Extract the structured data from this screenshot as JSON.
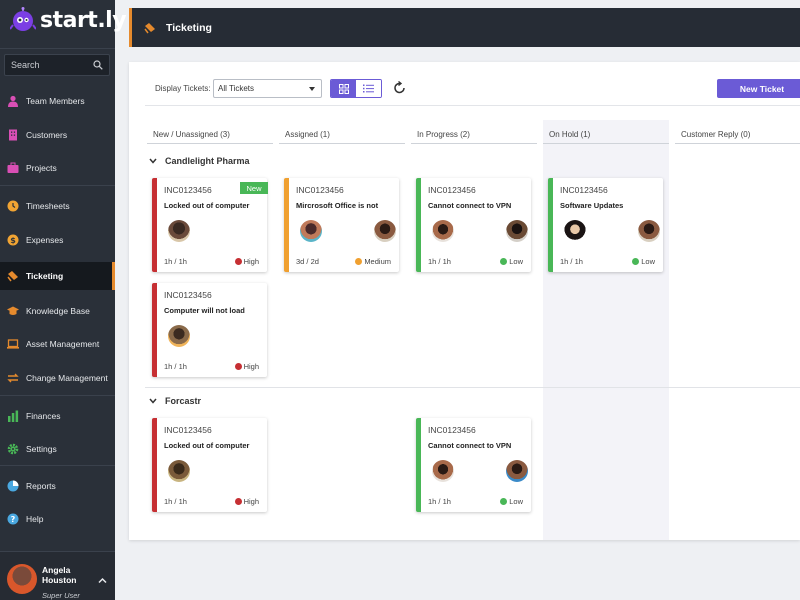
{
  "brand": {
    "name": "start.ly"
  },
  "search": {
    "placeholder": "Search"
  },
  "nav": [
    {
      "label": "Team Members",
      "icon": "person-icon"
    },
    {
      "label": "Customers",
      "icon": "building-icon"
    },
    {
      "label": "Projects",
      "icon": "briefcase-icon"
    },
    {
      "label": "Timesheets",
      "icon": "clock-icon"
    },
    {
      "label": "Expenses",
      "icon": "dollar-icon"
    },
    {
      "label": "Ticketing",
      "icon": "ticket-icon"
    },
    {
      "label": "Knowledge Base",
      "icon": "graduation-cap-icon"
    },
    {
      "label": "Asset Management",
      "icon": "laptop-icon"
    },
    {
      "label": "Change Management",
      "icon": "arrows-swap-icon"
    },
    {
      "label": "Finances",
      "icon": "bar-chart-icon"
    },
    {
      "label": "Settings",
      "icon": "gear-icon"
    },
    {
      "label": "Reports",
      "icon": "pie-chart-icon"
    },
    {
      "label": "Help",
      "icon": "question-icon"
    }
  ],
  "active_nav": "Ticketing",
  "user": {
    "first": "Angela",
    "last": "Houston",
    "role": "Super User"
  },
  "header": {
    "title": "Ticketing"
  },
  "toolbar": {
    "display_label": "Display Tickets:",
    "display_value": "All Tickets",
    "new_ticket": "New Ticket"
  },
  "columns": [
    "New / Unassigned (3)",
    "Assigned (1)",
    "In Progress (2)",
    "On Hold (1)",
    "Customer Reply (0)"
  ],
  "groups": [
    "Candlelight Pharma",
    "Forcastr"
  ],
  "cards": [
    {
      "id": "INC0123456",
      "title": "Locked out of computer",
      "time": "1h / 1h",
      "priority": "High",
      "badge": "New"
    },
    {
      "id": "INC0123456",
      "title": "Computer will not load",
      "time": "1h / 1h",
      "priority": "High"
    },
    {
      "id": "INC0123456",
      "title": "Mircrosoft Office is not",
      "time": "3d / 2d",
      "priority": "Medium"
    },
    {
      "id": "INC0123456",
      "title": "Cannot connect to VPN",
      "time": "1h / 1h",
      "priority": "Low"
    },
    {
      "id": "INC0123456",
      "title": "Software Updates",
      "time": "1h / 1h",
      "priority": "Low"
    },
    {
      "id": "INC0123456",
      "title": "Locked out of computer",
      "time": "1h / 1h",
      "priority": "High"
    },
    {
      "id": "INC0123456",
      "title": "Cannot connect to VPN",
      "time": "1h / 1h",
      "priority": "Low"
    }
  ],
  "colors": {
    "accent": "#6b5bd6",
    "orange": "#e58a2d",
    "high": "#c62f33",
    "medium": "#f0a030",
    "low": "#49b757",
    "new_badge": "#49b757"
  }
}
